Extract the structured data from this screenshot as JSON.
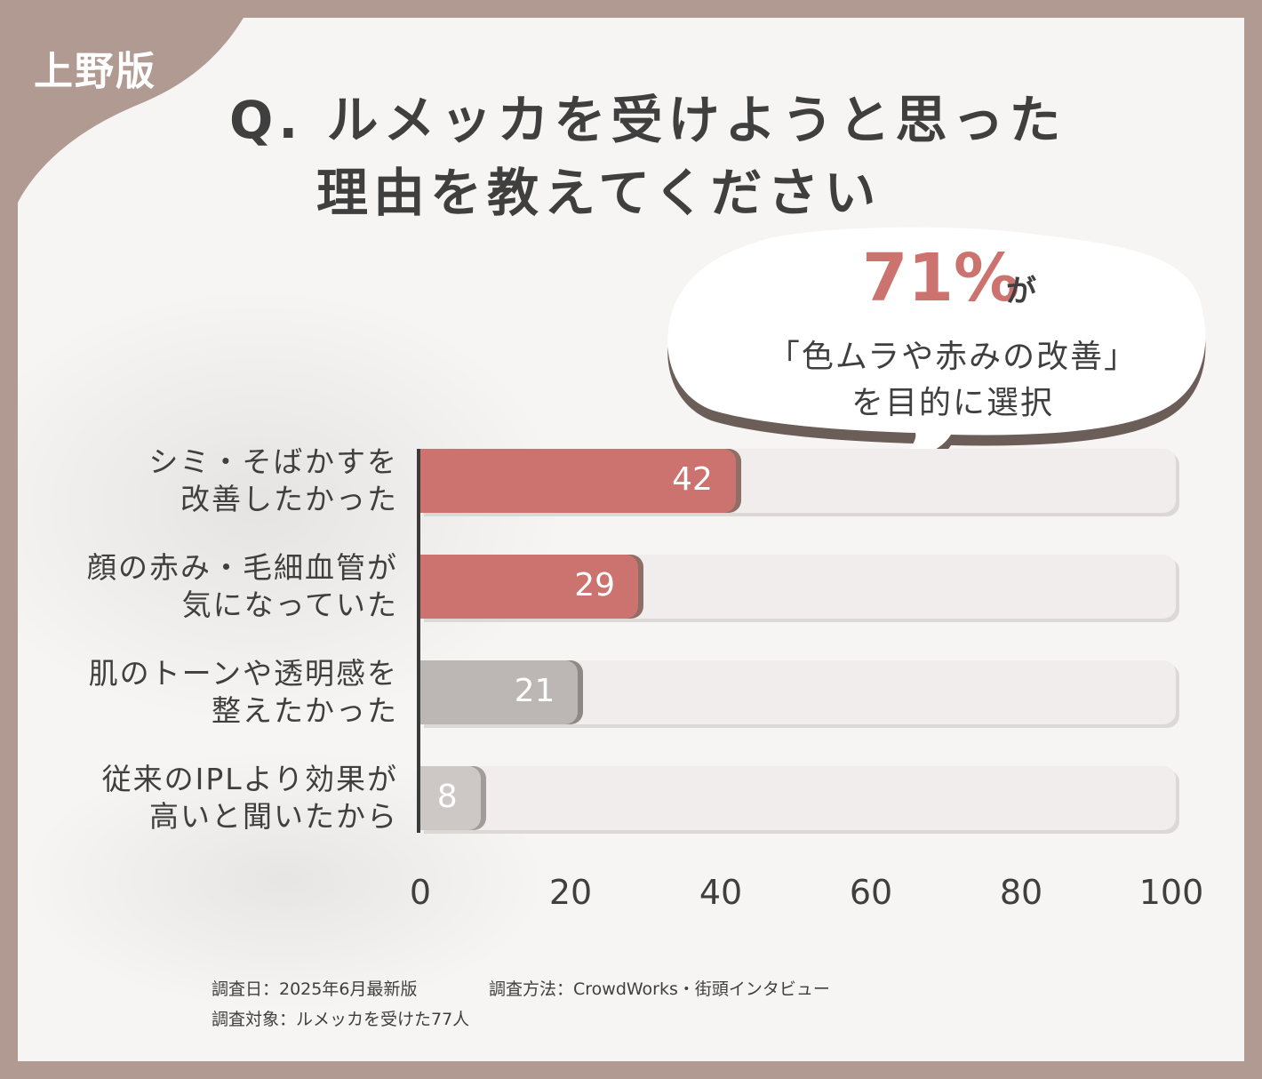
{
  "badge": "上野版",
  "question": {
    "line1": "Q. ルメッカを受けようと思った",
    "line2": "理由を教えてください"
  },
  "callout": {
    "percent": "71%",
    "suffix": "が",
    "line2": "「色ムラや赤みの改善」",
    "line3": "を目的に選択"
  },
  "colors": {
    "frame": "#b19a92",
    "highlight": "#cc7370",
    "highlight_shadow": "#8f6e66",
    "muted": "#bcb7b5",
    "muted_light": "#cdc8c6",
    "track": "#f0edec"
  },
  "chart_data": {
    "type": "bar",
    "orientation": "horizontal",
    "categories": [
      [
        "シミ・そばかすを",
        "改善したかった"
      ],
      [
        "顔の赤み・毛細血管が",
        "気になっていた"
      ],
      [
        "肌のトーンや透明感を",
        "整えたかった"
      ],
      [
        "従来のIPLより効果が",
        "高いと聞いたから"
      ]
    ],
    "values": [
      42,
      29,
      21,
      8
    ],
    "value_labels": [
      "42",
      "29",
      "21",
      "8"
    ],
    "xlim": [
      0,
      100
    ],
    "xticks": [
      "0",
      "20",
      "40",
      "60",
      "80",
      "100"
    ],
    "grid": false,
    "legend": "none"
  },
  "footer": {
    "survey_date": "調査日：2025年6月最新版",
    "method": "調査方法：CrowdWorks・街頭インタビュー",
    "target": "調査対象：ルメッカを受けた77人"
  }
}
